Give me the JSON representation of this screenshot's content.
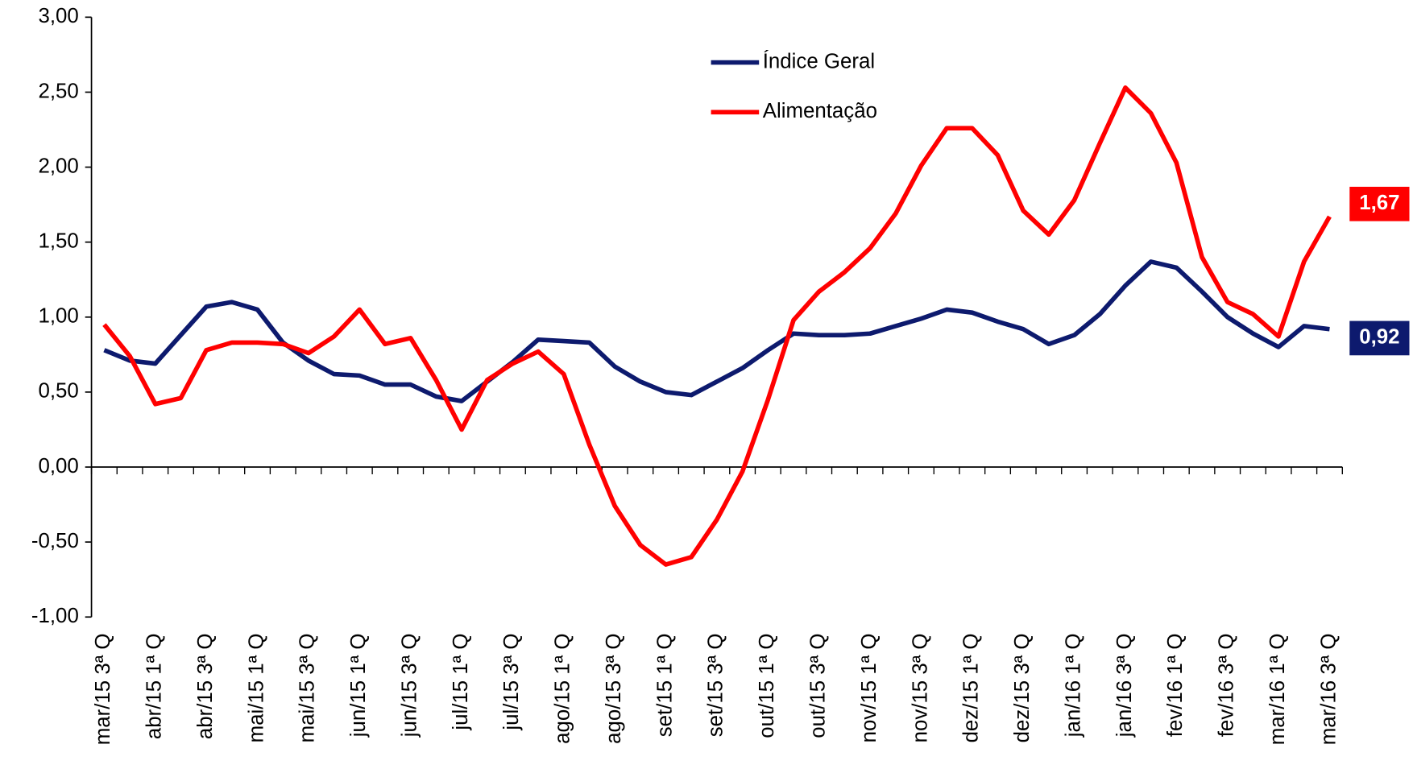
{
  "chart_data": {
    "type": "line",
    "categories": [
      "mar/15 3ª Q",
      null,
      "abr/15 1ª Q",
      null,
      "abr/15 3ª Q",
      null,
      "mai/15 1ª Q",
      null,
      "mai/15 3ª Q",
      null,
      "jun/15 1ª Q",
      null,
      "jun/15 3ª Q",
      null,
      "jul/15 1ª Q",
      null,
      "jul/15 3ª Q",
      null,
      "ago/15 1ª Q",
      null,
      "ago/15 3ª Q",
      null,
      "set/15 1ª Q",
      null,
      "set/15 3ª Q",
      null,
      "out/15 1ª Q",
      null,
      "out/15 3ª Q",
      null,
      "nov/15 1ª Q",
      null,
      "nov/15 3ª Q",
      null,
      "dez/15 1ª Q",
      null,
      "dez/15 3ª Q",
      null,
      "jan/16 1ª Q",
      null,
      "jan/16 3ª Q",
      null,
      "fev/16 1ª Q",
      null,
      "fev/16 3ª Q",
      null,
      "mar/16 1ª Q",
      null,
      "mar/16 3ª Q"
    ],
    "series": [
      {
        "name": "Índice Geral",
        "color": "#0d1a6e",
        "values": [
          0.78,
          0.71,
          0.69,
          0.88,
          1.07,
          1.1,
          1.05,
          0.83,
          0.71,
          0.62,
          0.61,
          0.55,
          0.55,
          0.47,
          0.44,
          0.57,
          0.7,
          0.85,
          0.84,
          0.83,
          0.67,
          0.57,
          0.5,
          0.48,
          0.57,
          0.66,
          0.78,
          0.89,
          0.88,
          0.88,
          0.89,
          0.94,
          0.99,
          1.05,
          1.03,
          0.97,
          0.92,
          0.82,
          0.88,
          1.02,
          1.21,
          1.37,
          1.33,
          1.17,
          1.0,
          0.89,
          0.8,
          0.94,
          0.92
        ],
        "value_labels": [
          null,
          null,
          null,
          null,
          null,
          null,
          null,
          null,
          null,
          null,
          null,
          null,
          null,
          null,
          null,
          null,
          null,
          null,
          null,
          null,
          null,
          null,
          null,
          null,
          null,
          null,
          null,
          null,
          null,
          null,
          null,
          null,
          null,
          null,
          null,
          null,
          null,
          null,
          null,
          null,
          null,
          null,
          null,
          null,
          null,
          null,
          null,
          null,
          "0,92"
        ]
      },
      {
        "name": "Alimentação",
        "color": "#ff0000",
        "values": [
          0.95,
          0.74,
          0.42,
          0.46,
          0.78,
          0.83,
          0.83,
          0.82,
          0.76,
          0.87,
          1.05,
          0.82,
          0.86,
          0.58,
          0.25,
          0.58,
          0.69,
          0.77,
          0.62,
          0.15,
          -0.26,
          -0.52,
          -0.65,
          -0.6,
          -0.35,
          -0.03,
          0.45,
          0.98,
          1.17,
          1.3,
          1.46,
          1.69,
          2.01,
          2.26,
          2.26,
          2.08,
          1.71,
          1.55,
          1.78,
          2.16,
          2.53,
          2.36,
          2.03,
          1.4,
          1.1,
          1.02,
          0.87,
          1.37,
          1.67
        ],
        "value_labels": [
          null,
          null,
          null,
          null,
          null,
          null,
          null,
          null,
          null,
          null,
          null,
          null,
          null,
          null,
          null,
          null,
          null,
          null,
          null,
          null,
          null,
          null,
          null,
          null,
          null,
          null,
          null,
          null,
          null,
          null,
          null,
          null,
          null,
          null,
          null,
          null,
          null,
          null,
          null,
          null,
          null,
          null,
          null,
          null,
          null,
          null,
          null,
          null,
          "1,67"
        ]
      }
    ],
    "ylim": [
      -1,
      3
    ],
    "yticks": [
      {
        "value": -1,
        "label": "-1,00"
      },
      {
        "value": -0.5,
        "label": "-0,50"
      },
      {
        "value": 0,
        "label": "0,00"
      },
      {
        "value": 0.5,
        "label": "0,50"
      },
      {
        "value": 1,
        "label": "1,00"
      },
      {
        "value": 1.5,
        "label": "1,50"
      },
      {
        "value": 2,
        "label": "2,00"
      },
      {
        "value": 2.5,
        "label": "2,50"
      },
      {
        "value": 3,
        "label": "3,00"
      }
    ],
    "grid": false,
    "legend": "top"
  }
}
